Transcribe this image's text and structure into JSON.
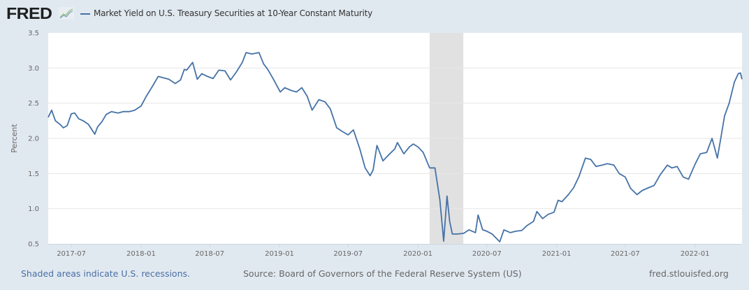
{
  "header": {
    "logo_text": "FRED",
    "logo_icon": "chart-line-icon",
    "series_title": "Market Yield on U.S. Treasury Securities at 10-Year Constant Maturity"
  },
  "footer": {
    "recession_note": "Shaded areas indicate U.S. recessions.",
    "source": "Source: Board of Governors of the Federal Reserve System (US)",
    "site": "fred.stlouisfed.org"
  },
  "colors": {
    "line": "#4572a7",
    "background": "#e1e9f0",
    "plot_background": "#ffffff",
    "recession_shade": "#e1e1e1",
    "grid": "#e6e6e6"
  },
  "chart_data": {
    "type": "line",
    "title": "Market Yield on U.S. Treasury Securities at 10-Year Constant Maturity",
    "xlabel": "",
    "ylabel": "Percent",
    "ylim": [
      0.5,
      3.5
    ],
    "xlim": [
      "2017-05-01",
      "2022-05-05"
    ],
    "yticks": [
      "0.5",
      "1.0",
      "1.5",
      "2.0",
      "2.5",
      "3.0",
      "3.5"
    ],
    "xticks": [
      {
        "date": "2017-07-01",
        "label": "2017-07"
      },
      {
        "date": "2018-01-01",
        "label": "2018-01"
      },
      {
        "date": "2018-07-01",
        "label": "2018-07"
      },
      {
        "date": "2019-01-01",
        "label": "2019-01"
      },
      {
        "date": "2019-07-01",
        "label": "2019-07"
      },
      {
        "date": "2020-01-01",
        "label": "2020-01"
      },
      {
        "date": "2020-07-01",
        "label": "2020-07"
      },
      {
        "date": "2021-01-01",
        "label": "2021-01"
      },
      {
        "date": "2021-07-01",
        "label": "2021-07"
      },
      {
        "date": "2022-01-01",
        "label": "2022-01"
      }
    ],
    "grid": true,
    "legend": "top-left",
    "recessions": [
      {
        "start": "2020-02-01",
        "end": "2020-04-30"
      }
    ],
    "series": [
      {
        "name": "Market Yield on U.S. Treasury Securities at 10-Year Constant Maturity",
        "x": [
          "2017-05-01",
          "2017-05-10",
          "2017-05-20",
          "2017-06-01",
          "2017-06-10",
          "2017-06-20",
          "2017-07-01",
          "2017-07-10",
          "2017-07-20",
          "2017-08-01",
          "2017-08-15",
          "2017-09-01",
          "2017-09-08",
          "2017-09-20",
          "2017-10-01",
          "2017-10-15",
          "2017-11-01",
          "2017-11-15",
          "2017-12-01",
          "2017-12-15",
          "2018-01-01",
          "2018-01-15",
          "2018-02-01",
          "2018-02-15",
          "2018-03-01",
          "2018-03-15",
          "2018-04-01",
          "2018-04-15",
          "2018-04-25",
          "2018-05-01",
          "2018-05-17",
          "2018-05-29",
          "2018-06-10",
          "2018-06-25",
          "2018-07-10",
          "2018-07-25",
          "2018-08-10",
          "2018-08-25",
          "2018-09-10",
          "2018-09-25",
          "2018-10-05",
          "2018-10-20",
          "2018-11-08",
          "2018-11-20",
          "2018-12-01",
          "2018-12-15",
          "2019-01-03",
          "2019-01-15",
          "2019-02-01",
          "2019-02-15",
          "2019-03-01",
          "2019-03-15",
          "2019-03-28",
          "2019-04-15",
          "2019-05-01",
          "2019-05-15",
          "2019-06-01",
          "2019-06-15",
          "2019-07-01",
          "2019-07-15",
          "2019-08-01",
          "2019-08-15",
          "2019-08-28",
          "2019-09-05",
          "2019-09-15",
          "2019-10-01",
          "2019-10-15",
          "2019-11-01",
          "2019-11-08",
          "2019-11-25",
          "2019-12-10",
          "2019-12-20",
          "2020-01-01",
          "2020-01-15",
          "2020-02-01",
          "2020-02-15",
          "2020-02-28",
          "2020-03-09",
          "2020-03-18",
          "2020-03-25",
          "2020-04-01",
          "2020-04-15",
          "2020-05-01",
          "2020-05-15",
          "2020-06-01",
          "2020-06-08",
          "2020-06-20",
          "2020-07-01",
          "2020-07-15",
          "2020-08-04",
          "2020-08-15",
          "2020-09-01",
          "2020-09-15",
          "2020-10-01",
          "2020-10-15",
          "2020-11-01",
          "2020-11-10",
          "2020-11-25",
          "2020-12-10",
          "2020-12-25",
          "2021-01-05",
          "2021-01-15",
          "2021-02-01",
          "2021-02-15",
          "2021-03-01",
          "2021-03-18",
          "2021-04-01",
          "2021-04-15",
          "2021-05-01",
          "2021-05-15",
          "2021-06-01",
          "2021-06-15",
          "2021-07-01",
          "2021-07-15",
          "2021-08-01",
          "2021-08-15",
          "2021-09-01",
          "2021-09-15",
          "2021-10-01",
          "2021-10-20",
          "2021-11-01",
          "2021-11-15",
          "2021-12-01",
          "2021-12-15",
          "2022-01-01",
          "2022-01-15",
          "2022-02-01",
          "2022-02-15",
          "2022-03-01",
          "2022-03-10",
          "2022-03-20",
          "2022-04-01",
          "2022-04-15",
          "2022-04-25",
          "2022-05-01",
          "2022-05-05"
        ],
        "values": [
          2.3,
          2.4,
          2.25,
          2.2,
          2.15,
          2.18,
          2.35,
          2.36,
          2.28,
          2.25,
          2.2,
          2.06,
          2.16,
          2.24,
          2.34,
          2.38,
          2.36,
          2.38,
          2.38,
          2.4,
          2.46,
          2.6,
          2.75,
          2.88,
          2.86,
          2.84,
          2.78,
          2.83,
          2.98,
          2.97,
          3.08,
          2.84,
          2.92,
          2.88,
          2.85,
          2.97,
          2.96,
          2.83,
          2.95,
          3.08,
          3.22,
          3.2,
          3.22,
          3.06,
          2.98,
          2.85,
          2.66,
          2.72,
          2.68,
          2.66,
          2.72,
          2.6,
          2.4,
          2.55,
          2.52,
          2.42,
          2.15,
          2.1,
          2.05,
          2.12,
          1.85,
          1.58,
          1.47,
          1.55,
          1.9,
          1.68,
          1.76,
          1.85,
          1.94,
          1.78,
          1.88,
          1.92,
          1.88,
          1.8,
          1.58,
          1.58,
          1.13,
          0.54,
          1.18,
          0.82,
          0.64,
          0.64,
          0.65,
          0.7,
          0.66,
          0.91,
          0.7,
          0.68,
          0.64,
          0.53,
          0.7,
          0.66,
          0.68,
          0.69,
          0.76,
          0.82,
          0.96,
          0.86,
          0.92,
          0.95,
          1.12,
          1.1,
          1.2,
          1.3,
          1.46,
          1.72,
          1.7,
          1.6,
          1.62,
          1.64,
          1.62,
          1.5,
          1.45,
          1.29,
          1.2,
          1.26,
          1.3,
          1.33,
          1.48,
          1.62,
          1.58,
          1.6,
          1.45,
          1.42,
          1.63,
          1.78,
          1.8,
          2.0,
          1.72,
          2.0,
          2.32,
          2.5,
          2.8,
          2.92,
          2.93,
          2.84
        ]
      }
    ]
  }
}
